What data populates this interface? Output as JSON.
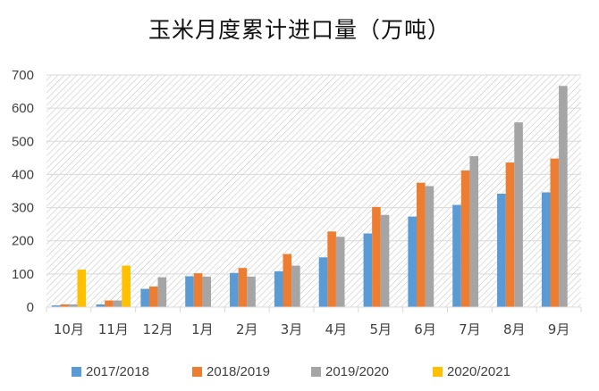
{
  "chart_data": {
    "type": "bar",
    "title": "玉米月度累计进口量（万吨）",
    "categories": [
      "10月",
      "11月",
      "12月",
      "1月",
      "2月",
      "3月",
      "4月",
      "5月",
      "6月",
      "7月",
      "8月",
      "9月"
    ],
    "series": [
      {
        "name": "2017/2018",
        "color": "#5b9bd5",
        "values": [
          5,
          8,
          55,
          93,
          103,
          108,
          150,
          222,
          273,
          308,
          342,
          346
        ]
      },
      {
        "name": "2018/2019",
        "color": "#ed7d31",
        "values": [
          8,
          20,
          62,
          102,
          118,
          160,
          228,
          302,
          375,
          412,
          436,
          448
        ]
      },
      {
        "name": "2019/2020",
        "color": "#a5a5a5",
        "values": [
          8,
          20,
          90,
          92,
          92,
          125,
          212,
          278,
          365,
          455,
          557,
          667
        ]
      },
      {
        "name": "2020/2021",
        "color": "#ffc000",
        "values": [
          113,
          125,
          null,
          null,
          null,
          null,
          null,
          null,
          null,
          null,
          null,
          null
        ]
      }
    ],
    "ylim": [
      0,
      700
    ],
    "yticks": [
      0,
      100,
      200,
      300,
      400,
      500,
      600,
      700
    ],
    "grid": true,
    "legend": "bottom",
    "xlabel": "",
    "ylabel": ""
  }
}
